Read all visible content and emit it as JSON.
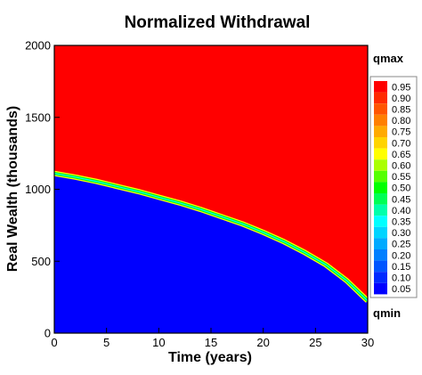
{
  "chart_data": {
    "type": "heatmap",
    "title": "Normalized Withdrawal",
    "xlabel": "Time (years)",
    "ylabel": "Real Wealth (thousands)",
    "xlim": [
      0,
      30
    ],
    "ylim": [
      0,
      2000
    ],
    "x_ticks": [
      0,
      5,
      10,
      15,
      20,
      25,
      30
    ],
    "y_ticks": [
      0,
      500,
      1000,
      1500,
      2000
    ],
    "regions": {
      "above_boundary": "qmax",
      "below_boundary": "qmin"
    },
    "boundary": {
      "x": [
        0,
        2,
        4,
        6,
        8,
        10,
        12,
        14,
        16,
        18,
        20,
        22,
        24,
        26,
        28,
        30
      ],
      "y": [
        1110,
        1085,
        1055,
        1020,
        985,
        945,
        905,
        860,
        810,
        760,
        700,
        635,
        560,
        475,
        365,
        225
      ]
    },
    "colorbar": {
      "top_label": "qmax",
      "bottom_label": "qmin",
      "levels": [
        {
          "label": "0.95",
          "color": "#ff0000"
        },
        {
          "label": "0.90",
          "color": "#ff2a00"
        },
        {
          "label": "0.85",
          "color": "#ff5500"
        },
        {
          "label": "0.80",
          "color": "#ff7f00"
        },
        {
          "label": "0.75",
          "color": "#ffaa00"
        },
        {
          "label": "0.70",
          "color": "#ffd400"
        },
        {
          "label": "0.65",
          "color": "#ffff00"
        },
        {
          "label": "0.60",
          "color": "#aaff00"
        },
        {
          "label": "0.55",
          "color": "#55ff00"
        },
        {
          "label": "0.50",
          "color": "#00ff00"
        },
        {
          "label": "0.45",
          "color": "#00ff55"
        },
        {
          "label": "0.40",
          "color": "#00ffaa"
        },
        {
          "label": "0.35",
          "color": "#00ffff"
        },
        {
          "label": "0.30",
          "color": "#00d4ff"
        },
        {
          "label": "0.25",
          "color": "#00aaff"
        },
        {
          "label": "0.20",
          "color": "#007fff"
        },
        {
          "label": "0.15",
          "color": "#0055ff"
        },
        {
          "label": "0.10",
          "color": "#002aff"
        },
        {
          "label": "0.05",
          "color": "#0000ff"
        }
      ]
    },
    "colors": {
      "qmax": "#ff0000",
      "qmin": "#0000ff",
      "transition_green": "#00ff00",
      "transition_yellow": "#ffff00"
    }
  }
}
